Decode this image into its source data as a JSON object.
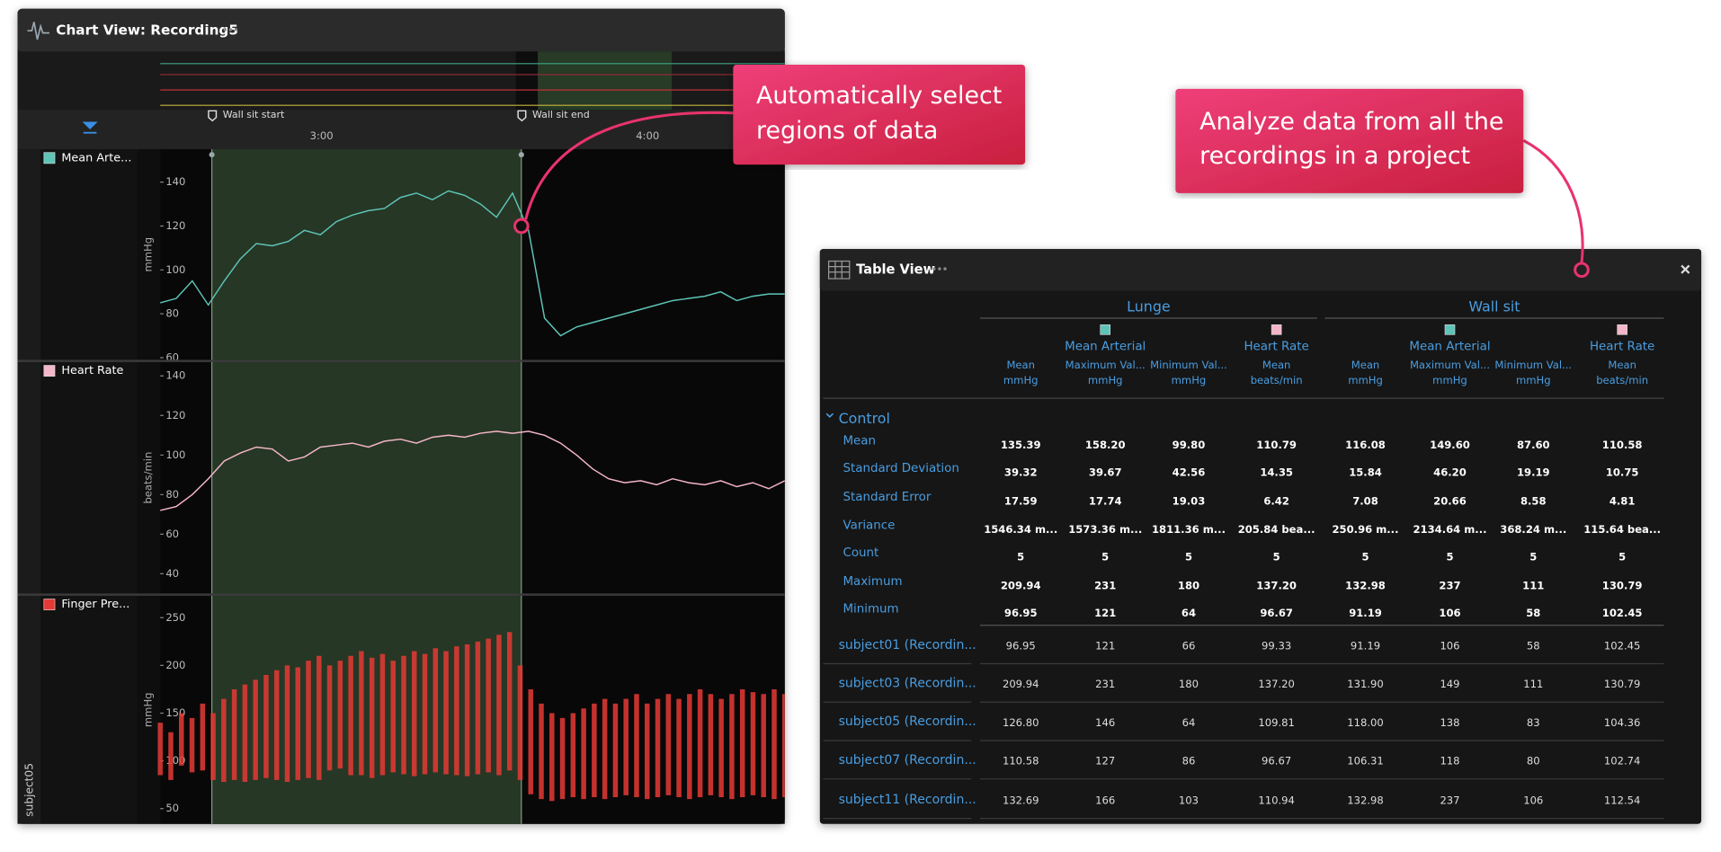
{
  "chart_view": {
    "title": "Chart View: Recording5",
    "markers": [
      "Wall sit start",
      "Wall sit end"
    ],
    "time_labels": [
      "3:00",
      "4:00"
    ],
    "subject": "subject05",
    "panels": [
      {
        "label": "Mean Arte...",
        "unit": "mmHg",
        "color": "#5ec4b8",
        "ylim": [
          59,
          155
        ],
        "yticks": [
          60,
          80,
          100,
          120,
          140
        ],
        "values": [
          85,
          87,
          95,
          84,
          95,
          105,
          112,
          111,
          113,
          118,
          116,
          122,
          125,
          127,
          128,
          133,
          135,
          132,
          136,
          134,
          130,
          124,
          135,
          118,
          78,
          70,
          74,
          76,
          78,
          80,
          82,
          84,
          86,
          87,
          88,
          90,
          86,
          88,
          89,
          89
        ]
      },
      {
        "label": "Heart Rate",
        "unit": "beats/min",
        "color": "#f4b6c8",
        "ylim": [
          30,
          147
        ],
        "yticks": [
          40,
          60,
          80,
          100,
          120,
          140
        ],
        "values": [
          72,
          74,
          80,
          88,
          97,
          101,
          104,
          103,
          97,
          99,
          104,
          105,
          106,
          104,
          107,
          108,
          106,
          109,
          110,
          109,
          111,
          112,
          111,
          112,
          110,
          106,
          100,
          93,
          88,
          86,
          87,
          85,
          88,
          86,
          85,
          87,
          84,
          86,
          83,
          87
        ]
      },
      {
        "label": "Finger Pre...",
        "unit": "mmHg",
        "color": "#e53935",
        "ylim": [
          34,
          273
        ],
        "yticks": [
          50,
          100,
          150,
          200,
          250
        ],
        "max": [
          140,
          130,
          150,
          145,
          160,
          150,
          165,
          175,
          180,
          185,
          190,
          195,
          200,
          198,
          205,
          210,
          200,
          205,
          210,
          215,
          208,
          212,
          205,
          210,
          215,
          212,
          218,
          215,
          220,
          222,
          225,
          228,
          232,
          235,
          200,
          175,
          160,
          150,
          145,
          150,
          155,
          160,
          165,
          160,
          165,
          170,
          160,
          165,
          170,
          165,
          170,
          175,
          170,
          165,
          170,
          175,
          172,
          170,
          175,
          170
        ],
        "min": [
          85,
          80,
          95,
          88,
          90,
          80,
          78,
          80,
          78,
          80,
          82,
          80,
          78,
          80,
          82,
          80,
          90,
          92,
          85,
          85,
          82,
          85,
          88,
          86,
          84,
          86,
          88,
          86,
          85,
          84,
          86,
          88,
          85,
          90,
          80,
          65,
          60,
          58,
          60,
          62,
          60,
          62,
          60,
          62,
          64,
          62,
          60,
          62,
          64,
          62,
          60,
          62,
          64,
          62,
          60,
          62,
          64,
          62,
          60,
          62
        ]
      }
    ]
  },
  "callouts": [
    {
      "lines": [
        "Automatically select",
        "regions of data"
      ]
    },
    {
      "lines": [
        "Analyze data from all the",
        "recordings in a project"
      ]
    }
  ],
  "table_view": {
    "title": "Table View",
    "groups": [
      {
        "name": "Lunge",
        "channels": [
          {
            "name": "Mean Arterial",
            "color": "#5ec4b8",
            "columns": [
              {
                "stat": "Mean",
                "unit": "mmHg"
              },
              {
                "stat": "Maximum Val...",
                "unit": "mmHg"
              },
              {
                "stat": "Minimum Val...",
                "unit": "mmHg"
              }
            ]
          },
          {
            "name": "Heart Rate",
            "color": "#f4b6c8",
            "columns": [
              {
                "stat": "Mean",
                "unit": "beats/min"
              }
            ]
          }
        ]
      },
      {
        "name": "Wall sit",
        "channels": [
          {
            "name": "Mean Arterial",
            "color": "#5ec4b8",
            "columns": [
              {
                "stat": "Mean",
                "unit": "mmHg"
              },
              {
                "stat": "Maximum Val...",
                "unit": "mmHg"
              },
              {
                "stat": "Minimum Val...",
                "unit": "mmHg"
              }
            ]
          },
          {
            "name": "Heart Rate",
            "color": "#f4b6c8",
            "columns": [
              {
                "stat": "Mean",
                "unit": "beats/min"
              }
            ]
          }
        ]
      }
    ],
    "group_name": "Control",
    "stats": [
      {
        "label": "Mean",
        "cells": [
          "135.39",
          "158.20",
          "99.80",
          "110.79",
          "116.08",
          "149.60",
          "87.60",
          "110.58"
        ]
      },
      {
        "label": "Standard Deviation",
        "cells": [
          "39.32",
          "39.67",
          "42.56",
          "14.35",
          "15.84",
          "46.20",
          "19.19",
          "10.75"
        ]
      },
      {
        "label": "Standard Error",
        "cells": [
          "17.59",
          "17.74",
          "19.03",
          "6.42",
          "7.08",
          "20.66",
          "8.58",
          "4.81"
        ]
      },
      {
        "label": "Variance",
        "cells": [
          "1546.34 m...",
          "1573.36 m...",
          "1811.36 m...",
          "205.84 bea...",
          "250.96 m...",
          "2134.64 m...",
          "368.24 m...",
          "115.64 bea..."
        ]
      },
      {
        "label": "Count",
        "cells": [
          "5",
          "5",
          "5",
          "5",
          "5",
          "5",
          "5",
          "5"
        ]
      },
      {
        "label": "Maximum",
        "cells": [
          "209.94",
          "231",
          "180",
          "137.20",
          "132.98",
          "237",
          "111",
          "130.79"
        ]
      },
      {
        "label": "Minimum",
        "cells": [
          "96.95",
          "121",
          "64",
          "96.67",
          "91.19",
          "106",
          "58",
          "102.45"
        ]
      }
    ],
    "subjects": [
      {
        "label": "subject01 (Recordin...",
        "cells": [
          "96.95",
          "121",
          "66",
          "99.33",
          "91.19",
          "106",
          "58",
          "102.45"
        ]
      },
      {
        "label": "subject03 (Recordin...",
        "cells": [
          "209.94",
          "231",
          "180",
          "137.20",
          "131.90",
          "149",
          "111",
          "130.79"
        ]
      },
      {
        "label": "subject05 (Recordin...",
        "cells": [
          "126.80",
          "146",
          "64",
          "109.81",
          "118.00",
          "138",
          "83",
          "104.36"
        ]
      },
      {
        "label": "subject07 (Recordin...",
        "cells": [
          "110.58",
          "127",
          "86",
          "96.67",
          "106.31",
          "118",
          "80",
          "102.74"
        ]
      },
      {
        "label": "subject11 (Recordin...",
        "cells": [
          "132.69",
          "166",
          "103",
          "110.94",
          "132.98",
          "237",
          "106",
          "112.54"
        ]
      }
    ]
  }
}
